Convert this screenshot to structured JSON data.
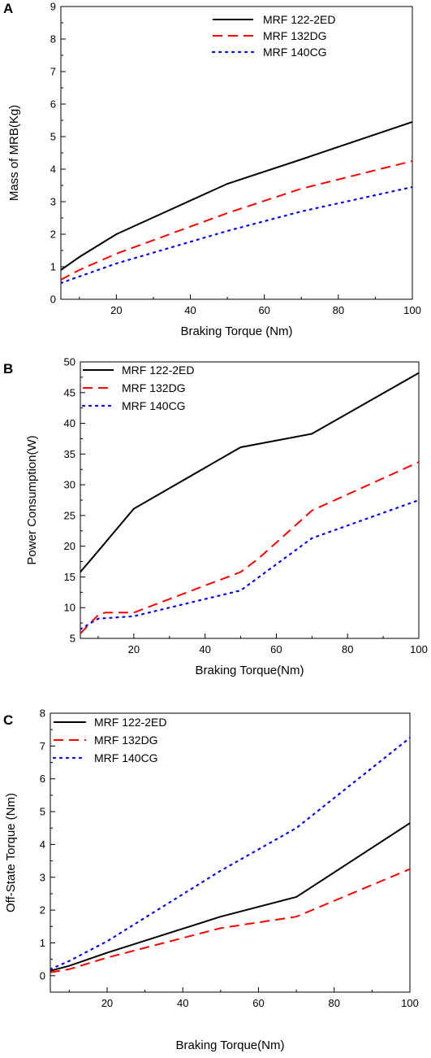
{
  "chart_data": [
    {
      "panel_label": "A",
      "type": "line",
      "xlabel": "Braking Torque (Nm)",
      "ylabel": "Mass of MRB(Kg)",
      "xlim": [
        5,
        100
      ],
      "ylim": [
        0,
        9
      ],
      "xticks": [
        20,
        40,
        60,
        80,
        100
      ],
      "yticks": [
        0,
        1,
        2,
        3,
        4,
        5,
        6,
        7,
        8,
        9
      ],
      "legend_position": "top-center",
      "series": [
        {
          "name": "MRF 122-2ED",
          "color": "#000000",
          "style": "solid",
          "x": [
            5,
            10,
            20,
            50,
            70,
            100
          ],
          "y": [
            0.9,
            1.3,
            2.0,
            3.55,
            4.3,
            5.45
          ]
        },
        {
          "name": "MRF 132DG",
          "color": "#ff0000",
          "style": "dashed",
          "x": [
            5,
            10,
            20,
            50,
            70,
            100
          ],
          "y": [
            0.6,
            0.9,
            1.4,
            2.65,
            3.4,
            4.25
          ]
        },
        {
          "name": "MRF 140CG",
          "color": "#0000ff",
          "style": "dotted",
          "x": [
            5,
            10,
            20,
            50,
            70,
            100
          ],
          "y": [
            0.5,
            0.7,
            1.1,
            2.1,
            2.7,
            3.45
          ]
        }
      ]
    },
    {
      "panel_label": "B",
      "type": "line",
      "xlabel": "Braking Torque(Nm)",
      "ylabel": "Power Consumption(W)",
      "xlim": [
        5,
        100
      ],
      "ylim": [
        5,
        50
      ],
      "xticks": [
        20,
        40,
        60,
        80,
        100
      ],
      "yticks": [
        5,
        10,
        15,
        20,
        25,
        30,
        35,
        40,
        45,
        50
      ],
      "legend_position": "top-left",
      "series": [
        {
          "name": "MRF 122-2ED",
          "color": "#000000",
          "style": "solid",
          "x": [
            5,
            10,
            20,
            50,
            70,
            100
          ],
          "y": [
            15.8,
            19.2,
            26.1,
            36.1,
            38.3,
            48.2
          ]
        },
        {
          "name": "MRF 132DG",
          "color": "#ff0000",
          "style": "dashed",
          "x": [
            5,
            10,
            12,
            15,
            20,
            50,
            55,
            70,
            100
          ],
          "y": [
            5.8,
            8.8,
            9.2,
            9.2,
            9.2,
            15.8,
            18.0,
            25.8,
            33.7
          ]
        },
        {
          "name": "MRF 140CG",
          "color": "#0000ff",
          "style": "dotted",
          "x": [
            5,
            10,
            20,
            50,
            70,
            100
          ],
          "y": [
            6.5,
            8.2,
            8.6,
            12.8,
            21.3,
            27.5
          ]
        }
      ]
    },
    {
      "panel_label": "C",
      "type": "line",
      "xlabel": "Braking Torque(Nm)",
      "ylabel": "Off-State Torque (Nm)",
      "xlim": [
        5,
        100
      ],
      "ylim": [
        -0.5,
        8
      ],
      "xticks": [
        20,
        40,
        60,
        80,
        100
      ],
      "yticks": [
        0,
        1,
        2,
        3,
        4,
        5,
        6,
        7,
        8
      ],
      "legend_position": "top-left",
      "series": [
        {
          "name": "MRF 122-2ED",
          "color": "#000000",
          "style": "solid",
          "x": [
            5,
            10,
            20,
            50,
            70,
            100
          ],
          "y": [
            0.15,
            0.3,
            0.7,
            1.8,
            2.4,
            4.65
          ]
        },
        {
          "name": "MRF 132DG",
          "color": "#ff0000",
          "style": "dashed",
          "x": [
            5,
            10,
            20,
            50,
            70,
            100
          ],
          "y": [
            0.1,
            0.2,
            0.55,
            1.45,
            1.8,
            3.25
          ]
        },
        {
          "name": "MRF 140CG",
          "color": "#0000ff",
          "style": "dotted",
          "x": [
            5,
            10,
            20,
            50,
            70,
            100
          ],
          "y": [
            0.2,
            0.45,
            1.05,
            3.2,
            4.5,
            7.25
          ]
        }
      ]
    }
  ]
}
